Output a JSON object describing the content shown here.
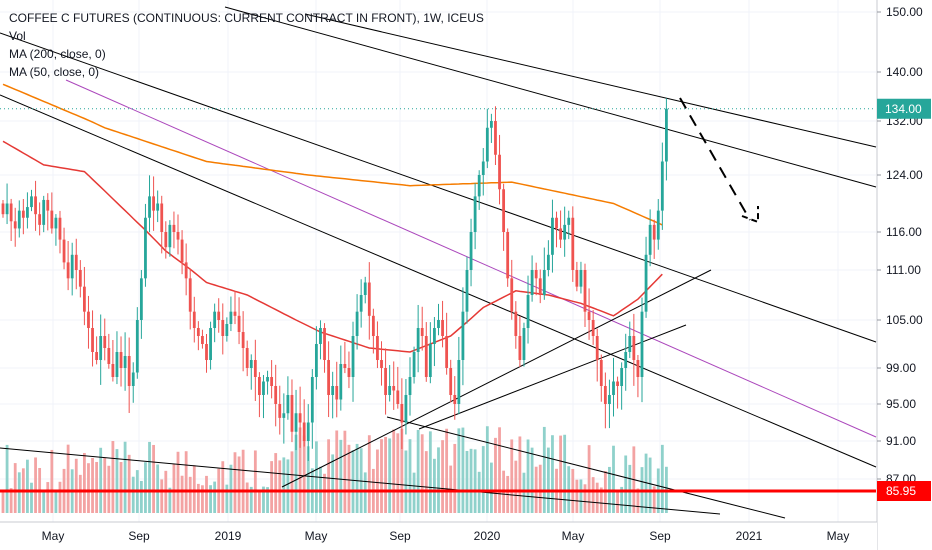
{
  "legend": {
    "title": "COFFEE C FUTURES (CONTINUOUS: CURRENT CONTRACT IN FRONT), 1W, ICEUS",
    "vol": "Vol",
    "ma200": "MA (200, close, 0)",
    "ma50": "MA (50, close, 0)"
  },
  "colors": {
    "up": "#26a69a",
    "down": "#ef5350",
    "vol_up": "#8fd1cb",
    "vol_down": "#f3a3a3",
    "ma200": "#f57c00",
    "ma50": "#e53935",
    "price_tag": "#26a69a",
    "support": "#ff0000",
    "purple_line": "#ab47bc",
    "trend": "#000000"
  },
  "chart_data": {
    "type": "candlestick",
    "title": "COFFEE C FUTURES (CONTINUOUS: CURRENT CONTRACT IN FRONT), 1W, ICEUS",
    "y_ticks": [
      "150.00",
      "140.00",
      "132.00",
      "124.00",
      "116.00",
      "111.00",
      "105.00",
      "99.00",
      "95.00",
      "91.00",
      "87.00"
    ],
    "y_tick_values": [
      150,
      140,
      132,
      124,
      116,
      111,
      105,
      99,
      95,
      91,
      87
    ],
    "x_ticks": [
      {
        "label": "May",
        "date": "2018-05-01"
      },
      {
        "label": "Sep",
        "date": "2018-09-01"
      },
      {
        "label": "2019",
        "date": "2019-01-01"
      },
      {
        "label": "May",
        "date": "2019-05-01"
      },
      {
        "label": "Sep",
        "date": "2019-09-01"
      },
      {
        "label": "2020",
        "date": "2020-01-01"
      },
      {
        "label": "May",
        "date": "2020-05-01"
      },
      {
        "label": "Sep",
        "date": "2020-09-01"
      },
      {
        "label": "2021",
        "date": "2021-01-01"
      },
      {
        "label": "May",
        "date": "2021-05-01"
      }
    ],
    "last_price": {
      "value": 134.0,
      "label": "134.00"
    },
    "support": {
      "value": 85.95,
      "label": "85.95"
    },
    "closes": [
      118.5,
      120.0,
      117.5,
      116.5,
      119.0,
      118.0,
      119.5,
      121.0,
      118.5,
      117.0,
      120.5,
      119.0,
      116.5,
      118.0,
      115.0,
      112.0,
      110.0,
      113.0,
      111.0,
      109.0,
      106.0,
      104.0,
      101.0,
      100.0,
      103.0,
      101.5,
      99.5,
      98.0,
      101.0,
      99.0,
      100.5,
      97.0,
      98.5,
      105.0,
      110.0,
      118.0,
      121.0,
      119.0,
      120.0,
      116.0,
      114.0,
      117.0,
      116.0,
      115.0,
      112.0,
      110.0,
      106.0,
      104.0,
      103.0,
      102.0,
      100.0,
      104.0,
      106.0,
      105.0,
      103.0,
      104.5,
      106.0,
      105.5,
      103.5,
      101.5,
      99.0,
      100.0,
      98.0,
      96.0,
      97.5,
      98.0,
      97.0,
      95.0,
      93.5,
      94.0,
      96.0,
      92.0,
      94.0,
      93.0,
      91.0,
      93.0,
      98.0,
      102.0,
      104.0,
      100.0,
      96.0,
      97.0,
      95.5,
      99.5,
      99.0,
      98.0,
      103.0,
      106.0,
      108.0,
      109.5,
      105.5,
      103.0,
      100.0,
      99.0,
      96.0,
      97.0,
      96.5,
      95.0,
      93.0,
      96.0,
      98.0,
      101.0,
      104.0,
      103.0,
      98.0,
      102.0,
      104.0,
      105.0,
      103.0,
      99.0,
      96.0,
      95.0,
      100.0,
      106.0,
      111.0,
      116.0,
      121.0,
      124.0,
      126.0,
      131.0,
      132.0,
      127.0,
      122.0,
      116.0,
      110.0,
      106.0,
      103.0,
      100.0,
      104.0,
      108.0,
      111.0,
      110.0,
      108.0,
      111.0,
      113.0,
      118.0,
      116.5,
      115.0,
      117.0,
      118.0,
      111.0,
      109.0,
      111.0,
      106.0,
      105.0,
      103.0,
      100.0,
      97.0,
      95.0,
      96.0,
      97.5,
      97.0,
      99.0,
      101.0,
      103.0,
      100.0,
      98.0,
      106.0,
      113.0,
      117.0,
      115.0,
      119.0,
      126.0,
      134.0
    ],
    "ma200_anchor": [
      [
        0,
        138.0
      ],
      [
        25,
        131.0
      ],
      [
        50,
        126.0
      ],
      [
        75,
        124.0
      ],
      [
        100,
        122.5
      ],
      [
        125,
        123.0
      ],
      [
        150,
        120.0
      ],
      [
        162,
        117.0
      ]
    ],
    "ma50_anchor": [
      [
        0,
        129.0
      ],
      [
        10,
        125.5
      ],
      [
        20,
        124.5
      ],
      [
        30,
        119.0
      ],
      [
        40,
        113.5
      ],
      [
        50,
        109.5
      ],
      [
        60,
        108.0
      ],
      [
        70,
        105.5
      ],
      [
        78,
        103.5
      ],
      [
        90,
        101.5
      ],
      [
        100,
        101.0
      ],
      [
        110,
        103.0
      ],
      [
        118,
        106.5
      ],
      [
        126,
        108.5
      ],
      [
        134,
        108.0
      ],
      [
        142,
        107.0
      ],
      [
        150,
        105.5
      ],
      [
        156,
        107.5
      ],
      [
        162,
        110.5
      ]
    ]
  }
}
